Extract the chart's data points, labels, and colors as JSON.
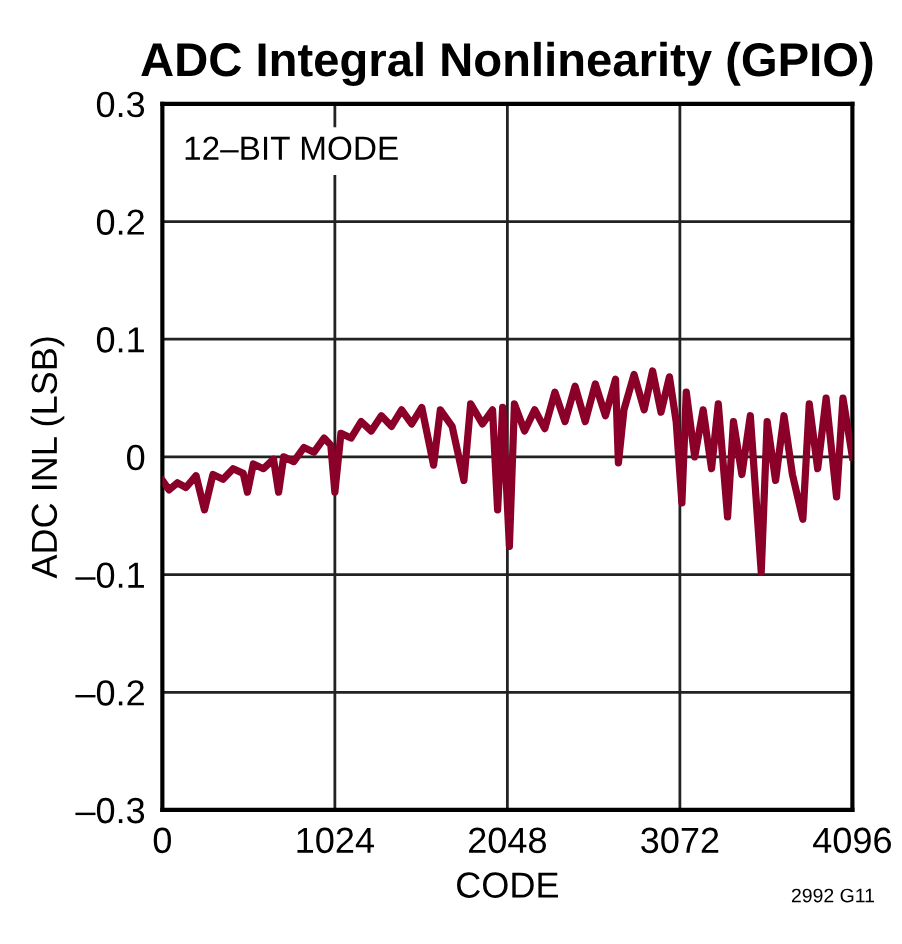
{
  "chart_data": {
    "type": "line",
    "title": "ADC Integral Nonlinearity (GPIO)",
    "xlabel": "CODE",
    "ylabel": "ADC INL (LSB)",
    "annotations": [
      "12–BIT MODE",
      "2992 G11"
    ],
    "x": [
      0,
      40,
      90,
      140,
      200,
      250,
      300,
      360,
      420,
      480,
      505,
      540,
      600,
      660,
      690,
      720,
      780,
      840,
      900,
      960,
      1000,
      1024,
      1060,
      1120,
      1180,
      1240,
      1300,
      1360,
      1420,
      1480,
      1540,
      1610,
      1650,
      1720,
      1790,
      1830,
      1900,
      1960,
      1990,
      2020,
      2060,
      2090,
      2150,
      2210,
      2270,
      2330,
      2390,
      2450,
      2510,
      2570,
      2630,
      2690,
      2707,
      2740,
      2800,
      2860,
      2910,
      2960,
      3010,
      3050,
      3084,
      3110,
      3160,
      3210,
      3260,
      3300,
      3355,
      3390,
      3440,
      3490,
      3555,
      3590,
      3640,
      3690,
      3740,
      3802,
      3840,
      3890,
      3940,
      4002,
      4040,
      4096
    ],
    "series": [
      {
        "color": "#8b0028",
        "values": [
          -0.02,
          -0.028,
          -0.022,
          -0.026,
          -0.016,
          -0.045,
          -0.015,
          -0.019,
          -0.01,
          -0.014,
          -0.03,
          -0.006,
          -0.01,
          -0.002,
          -0.03,
          0.0,
          -0.004,
          0.008,
          0.004,
          0.016,
          0.01,
          -0.03,
          0.02,
          0.016,
          0.03,
          0.022,
          0.035,
          0.026,
          0.04,
          0.028,
          0.042,
          -0.007,
          0.04,
          0.026,
          -0.02,
          0.045,
          0.028,
          0.04,
          -0.045,
          0.042,
          -0.076,
          0.045,
          0.022,
          0.04,
          0.024,
          0.055,
          0.03,
          0.06,
          0.03,
          0.062,
          0.035,
          0.066,
          -0.005,
          0.04,
          0.07,
          0.04,
          0.073,
          0.038,
          0.068,
          0.03,
          -0.039,
          0.055,
          0.0,
          0.04,
          -0.01,
          0.045,
          -0.051,
          0.03,
          -0.015,
          0.035,
          -0.098,
          0.03,
          -0.02,
          0.035,
          -0.015,
          -0.053,
          0.045,
          -0.01,
          0.05,
          -0.034,
          0.05,
          0.0
        ]
      }
    ],
    "xlim": [
      0,
      4096
    ],
    "xticks": [
      0,
      1024,
      2048,
      3072,
      4096
    ],
    "ylim": [
      -0.3,
      0.3
    ],
    "yticks": [
      {
        "value": -0.3,
        "label": "–0.3"
      },
      {
        "value": -0.2,
        "label": "–0.2"
      },
      {
        "value": -0.1,
        "label": "–0.1"
      },
      0,
      0.1,
      0.2,
      0.3
    ],
    "grid": true,
    "marker": "none",
    "line_style": "solid"
  }
}
